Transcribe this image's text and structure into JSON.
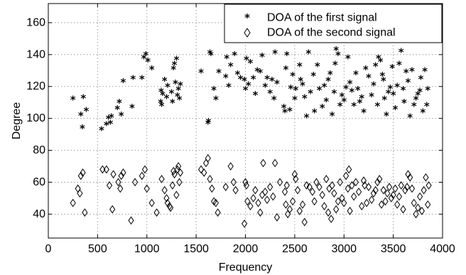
{
  "chart_data": {
    "type": "scatter",
    "title": "",
    "xlabel": "Frequency",
    "ylabel": "Degree",
    "xlim": [
      0,
      4000
    ],
    "ylim": [
      25,
      172
    ],
    "xticks": [
      0,
      500,
      1000,
      1500,
      2000,
      2500,
      3000,
      3500,
      4000
    ],
    "yticks": [
      40,
      60,
      80,
      100,
      120,
      140,
      160
    ],
    "grid": true,
    "legend_position": "top-right",
    "series": [
      {
        "name": "DOA of the first signal",
        "marker": "star",
        "points": [
          [
            250,
            112
          ],
          [
            330,
            102
          ],
          [
            345,
            94
          ],
          [
            355,
            113
          ],
          [
            385,
            105
          ],
          [
            540,
            93
          ],
          [
            590,
            96
          ],
          [
            610,
            100
          ],
          [
            630,
            97
          ],
          [
            640,
            101
          ],
          [
            700,
            106
          ],
          [
            720,
            110
          ],
          [
            740,
            102
          ],
          [
            760,
            123
          ],
          [
            850,
            107
          ],
          [
            860,
            125
          ],
          [
            950,
            125
          ],
          [
            970,
            138
          ],
          [
            990,
            140
          ],
          [
            1010,
            136
          ],
          [
            1050,
            131
          ],
          [
            1140,
            110
          ],
          [
            1145,
            117
          ],
          [
            1150,
            108
          ],
          [
            1160,
            115
          ],
          [
            1180,
            124
          ],
          [
            1200,
            113
          ],
          [
            1210,
            120
          ],
          [
            1250,
            116
          ],
          [
            1260,
            110
          ],
          [
            1270,
            131
          ],
          [
            1280,
            134
          ],
          [
            1290,
            122
          ],
          [
            1300,
            137
          ],
          [
            1310,
            114
          ],
          [
            1320,
            118
          ],
          [
            1330,
            112
          ],
          [
            1340,
            121
          ],
          [
            1550,
            129
          ],
          [
            1620,
            97
          ],
          [
            1625,
            98
          ],
          [
            1640,
            141
          ],
          [
            1650,
            140
          ],
          [
            1680,
            118
          ],
          [
            1700,
            112
          ],
          [
            1730,
            129
          ],
          [
            1800,
            126
          ],
          [
            1810,
            138
          ],
          [
            1830,
            120
          ],
          [
            1850,
            133
          ],
          [
            1890,
            140
          ],
          [
            1920,
            128
          ],
          [
            1950,
            125
          ],
          [
            1990,
            124
          ],
          [
            2000,
            118
          ],
          [
            2010,
            137
          ],
          [
            2030,
            121
          ],
          [
            2050,
            135
          ],
          [
            2080,
            125
          ],
          [
            2100,
            115
          ],
          [
            2120,
            130
          ],
          [
            2150,
            129
          ],
          [
            2170,
            139
          ],
          [
            2200,
            120
          ],
          [
            2220,
            125
          ],
          [
            2250,
            116
          ],
          [
            2270,
            124
          ],
          [
            2290,
            112
          ],
          [
            2300,
            141
          ],
          [
            2320,
            122
          ],
          [
            2390,
            107
          ],
          [
            2400,
            104
          ],
          [
            2410,
            131
          ],
          [
            2420,
            140
          ],
          [
            2450,
            105
          ],
          [
            2460,
            119
          ],
          [
            2480,
            127
          ],
          [
            2500,
            112
          ],
          [
            2510,
            118
          ],
          [
            2550,
            133
          ],
          [
            2560,
            124
          ],
          [
            2580,
            121
          ],
          [
            2600,
            113
          ],
          [
            2620,
            101
          ],
          [
            2640,
            141
          ],
          [
            2660,
            116
          ],
          [
            2690,
            127
          ],
          [
            2700,
            104
          ],
          [
            2730,
            133
          ],
          [
            2750,
            118
          ],
          [
            2780,
            107
          ],
          [
            2800,
            120
          ],
          [
            2820,
            111
          ],
          [
            2840,
            124
          ],
          [
            2860,
            128
          ],
          [
            2880,
            102
          ],
          [
            2900,
            116
          ],
          [
            2910,
            134
          ],
          [
            2920,
            143
          ],
          [
            2940,
            140
          ],
          [
            2960,
            108
          ],
          [
            2980,
            114
          ],
          [
            3000,
            111
          ],
          [
            3020,
            119
          ],
          [
            3040,
            138
          ],
          [
            3060,
            122
          ],
          [
            3080,
            117
          ],
          [
            3100,
            108
          ],
          [
            3120,
            128
          ],
          [
            3140,
            118
          ],
          [
            3160,
            110
          ],
          [
            3180,
            113
          ],
          [
            3200,
            104
          ],
          [
            3220,
            131
          ],
          [
            3250,
            126
          ],
          [
            3280,
            114
          ],
          [
            3300,
            121
          ],
          [
            3320,
            133
          ],
          [
            3340,
            108
          ],
          [
            3350,
            138
          ],
          [
            3370,
            136
          ],
          [
            3390,
            127
          ],
          [
            3400,
            124
          ],
          [
            3410,
            112
          ],
          [
            3430,
            102
          ],
          [
            3450,
            116
          ],
          [
            3470,
            119
          ],
          [
            3490,
            132
          ],
          [
            3500,
            115
          ],
          [
            3520,
            106
          ],
          [
            3540,
            120
          ],
          [
            3560,
            134
          ],
          [
            3580,
            142
          ],
          [
            3600,
            118
          ],
          [
            3610,
            110
          ],
          [
            3630,
            129
          ],
          [
            3650,
            123
          ],
          [
            3670,
            101
          ],
          [
            3690,
            130
          ],
          [
            3710,
            108
          ],
          [
            3730,
            112
          ],
          [
            3750,
            115
          ],
          [
            3770,
            117
          ],
          [
            3780,
            125
          ],
          [
            3800,
            104
          ],
          [
            3820,
            130
          ],
          [
            3840,
            108
          ],
          [
            3850,
            118
          ]
        ]
      },
      {
        "name": "DOA of the second signal",
        "marker": "diamond",
        "points": [
          [
            250,
            47
          ],
          [
            300,
            56
          ],
          [
            320,
            53
          ],
          [
            330,
            64
          ],
          [
            350,
            66
          ],
          [
            370,
            41
          ],
          [
            550,
            68
          ],
          [
            590,
            68
          ],
          [
            620,
            58
          ],
          [
            650,
            43
          ],
          [
            660,
            65
          ],
          [
            710,
            60
          ],
          [
            730,
            56
          ],
          [
            740,
            64
          ],
          [
            760,
            66
          ],
          [
            840,
            36
          ],
          [
            880,
            60
          ],
          [
            950,
            64
          ],
          [
            980,
            68
          ],
          [
            1000,
            56
          ],
          [
            1050,
            47
          ],
          [
            1100,
            41
          ],
          [
            1150,
            62
          ],
          [
            1180,
            55
          ],
          [
            1200,
            50
          ],
          [
            1210,
            47
          ],
          [
            1230,
            45
          ],
          [
            1240,
            44
          ],
          [
            1260,
            58
          ],
          [
            1270,
            67
          ],
          [
            1280,
            65
          ],
          [
            1300,
            52
          ],
          [
            1310,
            68
          ],
          [
            1320,
            70
          ],
          [
            1330,
            60
          ],
          [
            1340,
            66
          ],
          [
            1550,
            68
          ],
          [
            1580,
            66
          ],
          [
            1600,
            72
          ],
          [
            1620,
            75
          ],
          [
            1640,
            62
          ],
          [
            1660,
            56
          ],
          [
            1680,
            48
          ],
          [
            1700,
            47
          ],
          [
            1720,
            41
          ],
          [
            1800,
            57
          ],
          [
            1850,
            70
          ],
          [
            1880,
            60
          ],
          [
            1900,
            55
          ],
          [
            1990,
            34
          ],
          [
            2000,
            60
          ],
          [
            2010,
            58
          ],
          [
            2020,
            48
          ],
          [
            2050,
            45
          ],
          [
            2080,
            50
          ],
          [
            2100,
            55
          ],
          [
            2130,
            47
          ],
          [
            2150,
            41
          ],
          [
            2170,
            52
          ],
          [
            2180,
            72
          ],
          [
            2200,
            54
          ],
          [
            2220,
            49
          ],
          [
            2250,
            57
          ],
          [
            2280,
            51
          ],
          [
            2300,
            72
          ],
          [
            2320,
            38
          ],
          [
            2350,
            60
          ],
          [
            2400,
            54
          ],
          [
            2410,
            46
          ],
          [
            2420,
            58
          ],
          [
            2430,
            40
          ],
          [
            2450,
            43
          ],
          [
            2480,
            48
          ],
          [
            2500,
            65
          ],
          [
            2510,
            62
          ],
          [
            2530,
            55
          ],
          [
            2550,
            42
          ],
          [
            2580,
            46
          ],
          [
            2600,
            35
          ],
          [
            2620,
            58
          ],
          [
            2650,
            57
          ],
          [
            2680,
            54
          ],
          [
            2700,
            48
          ],
          [
            2720,
            60
          ],
          [
            2750,
            57
          ],
          [
            2780,
            52
          ],
          [
            2800,
            45
          ],
          [
            2820,
            62
          ],
          [
            2840,
            41
          ],
          [
            2850,
            56
          ],
          [
            2870,
            37
          ],
          [
            2880,
            58
          ],
          [
            2900,
            53
          ],
          [
            2920,
            43
          ],
          [
            2940,
            48
          ],
          [
            2960,
            60
          ],
          [
            2980,
            50
          ],
          [
            3000,
            47
          ],
          [
            3020,
            64
          ],
          [
            3040,
            56
          ],
          [
            3050,
            68
          ],
          [
            3060,
            42
          ],
          [
            3080,
            58
          ],
          [
            3100,
            51
          ],
          [
            3120,
            60
          ],
          [
            3150,
            54
          ],
          [
            3180,
            45
          ],
          [
            3200,
            61
          ],
          [
            3210,
            58
          ],
          [
            3230,
            47
          ],
          [
            3250,
            57
          ],
          [
            3280,
            49
          ],
          [
            3300,
            53
          ],
          [
            3320,
            55
          ],
          [
            3340,
            60
          ],
          [
            3360,
            62
          ],
          [
            3380,
            46
          ],
          [
            3400,
            55
          ],
          [
            3420,
            48
          ],
          [
            3440,
            53
          ],
          [
            3460,
            57
          ],
          [
            3480,
            50
          ],
          [
            3500,
            52
          ],
          [
            3520,
            56
          ],
          [
            3540,
            46
          ],
          [
            3560,
            51
          ],
          [
            3580,
            58
          ],
          [
            3600,
            43
          ],
          [
            3620,
            55
          ],
          [
            3640,
            57
          ],
          [
            3650,
            65
          ],
          [
            3670,
            63
          ],
          [
            3690,
            56
          ],
          [
            3710,
            47
          ],
          [
            3730,
            40
          ],
          [
            3750,
            44
          ],
          [
            3770,
            51
          ],
          [
            3790,
            42
          ],
          [
            3810,
            55
          ],
          [
            3830,
            63
          ],
          [
            3850,
            46
          ],
          [
            3860,
            58
          ]
        ]
      }
    ]
  }
}
